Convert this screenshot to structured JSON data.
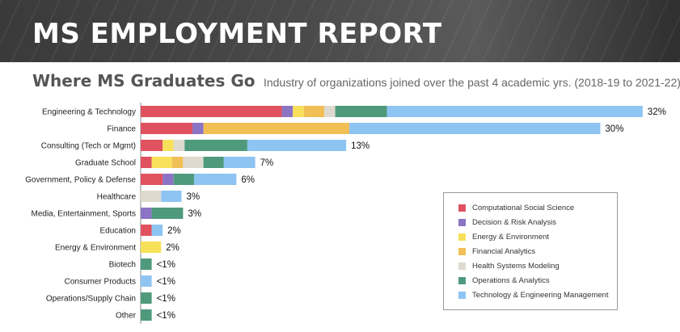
{
  "banner": {
    "title": "MS EMPLOYMENT REPORT"
  },
  "heading": {
    "main": "Where MS Graduates Go",
    "subtitle": "Industry of organizations joined over the past 4 academic yrs. (2018-19 to 2021-22)"
  },
  "chart_data": {
    "type": "bar",
    "orientation": "horizontal",
    "stacked": true,
    "title": "Where MS Graduates Go",
    "subtitle": "Industry of organizations joined over the past 4 academic yrs. (2018-19 to 2021-22)",
    "categories": [
      "Engineering & Technology",
      "Finance",
      "Consulting (Tech or Mgmt)",
      "Graduate School",
      "Government, Policy & Defense",
      "Healthcare",
      "Media, Entertainment, Sports",
      "Education",
      "Energy & Environment",
      "Biotech",
      "Consumer Products",
      "Operations/Supply Chain",
      "Other"
    ],
    "totals_labels": [
      "32%",
      "30%",
      "13%",
      "7%",
      "6%",
      "3%",
      "3%",
      "2%",
      "2%",
      "<1%",
      "<1%",
      "<1%",
      "<1%"
    ],
    "series": [
      {
        "name": "Computational Social Science",
        "color": "#e0525f",
        "values": [
          9.0,
          3.3,
          1.4,
          0.7,
          1.4,
          0,
          0,
          0.7,
          0,
          0,
          0,
          0,
          0
        ]
      },
      {
        "name": "Decision & Risk Analysis",
        "color": "#8b74c4",
        "values": [
          0.7,
          0.7,
          0,
          0,
          0.7,
          0,
          0.7,
          0,
          0,
          0,
          0,
          0,
          0
        ]
      },
      {
        "name": "Energy & Environment",
        "color": "#f7e05a",
        "values": [
          0.7,
          0,
          0.7,
          1.3,
          0,
          0,
          0,
          0,
          1.3,
          0,
          0,
          0,
          0
        ]
      },
      {
        "name": "Financial Analytics",
        "color": "#f2bf57",
        "values": [
          1.3,
          9.3,
          0,
          0.7,
          0,
          0,
          0,
          0,
          0,
          0,
          0,
          0,
          0
        ]
      },
      {
        "name": "Health Systems Modeling",
        "color": "#dedad0",
        "values": [
          0.7,
          0,
          0.7,
          1.3,
          0,
          1.3,
          0,
          0,
          0,
          0,
          0,
          0,
          0
        ]
      },
      {
        "name": "Operations & Analytics",
        "color": "#4f9a7d",
        "values": [
          3.3,
          0,
          4.0,
          1.3,
          1.3,
          0,
          2.0,
          0,
          0,
          0.7,
          0,
          0.7,
          0.7
        ]
      },
      {
        "name": "Technology & Engineering Management",
        "color": "#8ec4f2",
        "values": [
          16.3,
          16.0,
          6.3,
          2.0,
          2.7,
          1.3,
          0,
          0.7,
          0,
          0,
          0.7,
          0,
          0
        ]
      }
    ],
    "legend_position": "lower-right",
    "grid": false,
    "xlabel": "",
    "ylabel": ""
  }
}
